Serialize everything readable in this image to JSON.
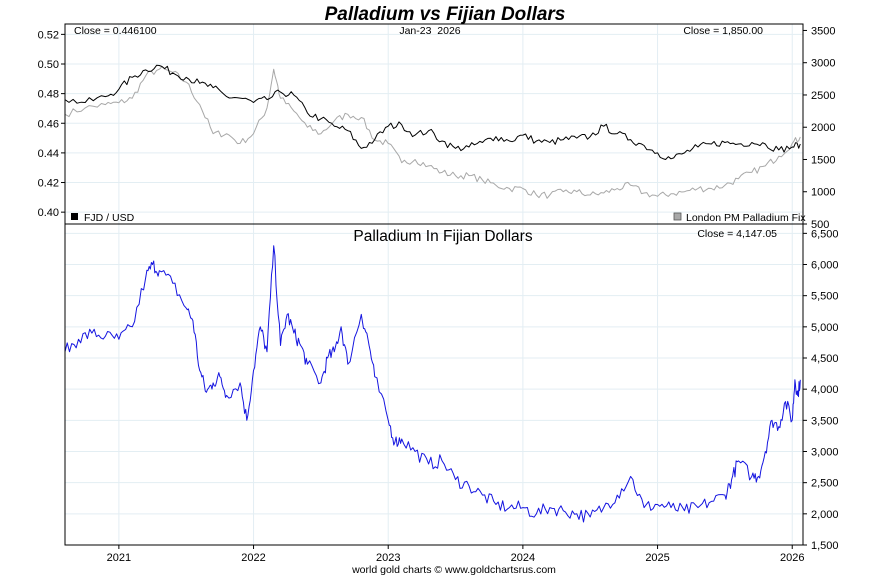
{
  "title": "Palladium vs Fijian Dollars",
  "footer": "world gold charts © www.goldchartsrus.com",
  "colors": {
    "title": "#1a1adc",
    "fjd": "#000000",
    "palladium_fix": "#a8a8a8",
    "palladium_fjd": "#1515e0",
    "grid": "#e3eef3"
  },
  "chart_data": [
    {
      "type": "line",
      "panel": "top",
      "date_label": "Jan-23  2026",
      "close_left": "Close = 0.446100",
      "close_right": "Close = 1,850.00",
      "legend_left": "FJD / USD",
      "legend_right": "London PM Palladium Fix",
      "y_left_ticks": [
        "0.40",
        "0.42",
        "0.44",
        "0.46",
        "0.48",
        "0.50",
        "0.52"
      ],
      "y_right_ticks": [
        "500",
        "1000",
        "1500",
        "2000",
        "2500",
        "3000",
        "3500"
      ],
      "ylim_left": [
        0.392,
        0.527
      ],
      "ylim_right": [
        500,
        3600
      ],
      "x_range": [
        2020.6,
        2026.08
      ],
      "series": [
        {
          "name": "FJD / USD",
          "axis": "left",
          "x": [
            2020.6,
            2020.75,
            2020.9,
            2021.0,
            2021.1,
            2021.2,
            2021.3,
            2021.4,
            2021.5,
            2021.6,
            2021.7,
            2021.8,
            2021.9,
            2022.0,
            2022.1,
            2022.2,
            2022.3,
            2022.4,
            2022.5,
            2022.6,
            2022.7,
            2022.8,
            2022.9,
            2023.0,
            2023.1,
            2023.2,
            2023.3,
            2023.4,
            2023.5,
            2023.6,
            2023.7,
            2023.8,
            2023.9,
            2024.0,
            2024.1,
            2024.2,
            2024.3,
            2024.4,
            2024.5,
            2024.6,
            2024.7,
            2024.8,
            2024.9,
            2025.0,
            2025.1,
            2025.2,
            2025.3,
            2025.4,
            2025.5,
            2025.6,
            2025.7,
            2025.8,
            2025.9,
            2026.0,
            2026.06
          ],
          "values": [
            0.476,
            0.474,
            0.478,
            0.483,
            0.491,
            0.496,
            0.499,
            0.494,
            0.491,
            0.487,
            0.484,
            0.478,
            0.477,
            0.474,
            0.476,
            0.481,
            0.479,
            0.467,
            0.463,
            0.458,
            0.455,
            0.443,
            0.449,
            0.458,
            0.459,
            0.452,
            0.455,
            0.448,
            0.443,
            0.444,
            0.447,
            0.451,
            0.448,
            0.452,
            0.448,
            0.447,
            0.449,
            0.45,
            0.451,
            0.458,
            0.453,
            0.449,
            0.445,
            0.44,
            0.436,
            0.44,
            0.444,
            0.446,
            0.447,
            0.446,
            0.447,
            0.446,
            0.442,
            0.444,
            0.446
          ]
        },
        {
          "name": "London PM Palladium Fix",
          "axis": "right",
          "x": [
            2020.6,
            2020.75,
            2020.9,
            2021.0,
            2021.1,
            2021.2,
            2021.3,
            2021.4,
            2021.5,
            2021.6,
            2021.7,
            2021.8,
            2021.9,
            2022.0,
            2022.1,
            2022.15,
            2022.2,
            2022.3,
            2022.4,
            2022.5,
            2022.6,
            2022.7,
            2022.8,
            2022.9,
            2023.0,
            2023.1,
            2023.2,
            2023.3,
            2023.4,
            2023.5,
            2023.6,
            2023.7,
            2023.8,
            2023.9,
            2024.0,
            2024.1,
            2024.2,
            2024.3,
            2024.4,
            2024.5,
            2024.6,
            2024.7,
            2024.8,
            2024.9,
            2025.0,
            2025.1,
            2025.2,
            2025.3,
            2025.4,
            2025.5,
            2025.6,
            2025.7,
            2025.8,
            2025.9,
            2026.0,
            2026.06
          ],
          "values": [
            2200,
            2300,
            2350,
            2380,
            2450,
            2800,
            2900,
            2850,
            2700,
            2350,
            1900,
            1900,
            1750,
            1900,
            2300,
            2900,
            2450,
            2250,
            2000,
            1900,
            2100,
            2200,
            2150,
            1800,
            1750,
            1450,
            1500,
            1400,
            1300,
            1250,
            1250,
            1180,
            1100,
            1050,
            1050,
            950,
            950,
            1000,
            1000,
            950,
            980,
            1050,
            1100,
            980,
            930,
            970,
            1000,
            1050,
            1050,
            1100,
            1200,
            1300,
            1400,
            1550,
            1750,
            1850
          ]
        }
      ]
    },
    {
      "type": "line",
      "panel": "bottom",
      "title": "Palladium In Fijian Dollars",
      "close": "Close = 4,147.05",
      "y_ticks": [
        "1,500",
        "2,000",
        "2,500",
        "3,000",
        "3,500",
        "4,000",
        "4,500",
        "5,000",
        "5,500",
        "6,000",
        "6,500"
      ],
      "ylim": [
        1500,
        6650
      ],
      "x_ticks": [
        "2021",
        "2022",
        "2023",
        "2024",
        "2025",
        "2026"
      ],
      "x_range": [
        2020.6,
        2026.08
      ],
      "series": [
        {
          "name": "Palladium In Fijian Dollars",
          "x": [
            2020.6,
            2020.7,
            2020.8,
            2020.9,
            2021.0,
            2021.1,
            2021.2,
            2021.25,
            2021.3,
            2021.4,
            2021.5,
            2021.55,
            2021.6,
            2021.65,
            2021.7,
            2021.75,
            2021.8,
            2021.9,
            2021.95,
            2022.0,
            2022.05,
            2022.1,
            2022.15,
            2022.2,
            2022.25,
            2022.3,
            2022.35,
            2022.4,
            2022.5,
            2022.55,
            2022.6,
            2022.65,
            2022.7,
            2022.8,
            2022.85,
            2022.9,
            2023.0,
            2023.05,
            2023.1,
            2023.2,
            2023.3,
            2023.4,
            2023.5,
            2023.6,
            2023.7,
            2023.8,
            2023.9,
            2024.0,
            2024.1,
            2024.2,
            2024.3,
            2024.4,
            2024.5,
            2024.6,
            2024.7,
            2024.8,
            2024.9,
            2025.0,
            2025.1,
            2025.2,
            2025.3,
            2025.4,
            2025.5,
            2025.55,
            2025.6,
            2025.7,
            2025.75,
            2025.8,
            2025.85,
            2025.9,
            2025.95,
            2026.0,
            2026.02,
            2026.04,
            2026.06
          ],
          "values": [
            4600,
            4800,
            4900,
            4850,
            4800,
            5000,
            5800,
            6000,
            5900,
            5700,
            5300,
            5100,
            4300,
            3950,
            4100,
            4200,
            3900,
            4100,
            3500,
            4300,
            5000,
            4600,
            6300,
            4700,
            5200,
            4900,
            4700,
            4400,
            4100,
            4500,
            4600,
            5000,
            4400,
            5200,
            4800,
            4200,
            3500,
            3150,
            3200,
            3000,
            2800,
            2850,
            2550,
            2450,
            2300,
            2150,
            2100,
            2100,
            2000,
            2100,
            2050,
            2000,
            1950,
            2100,
            2300,
            2600,
            2100,
            2150,
            2100,
            2050,
            2100,
            2200,
            2300,
            2550,
            2850,
            2600,
            2600,
            3000,
            3500,
            3400,
            3800,
            3500,
            4150,
            3900,
            4150
          ]
        }
      ]
    }
  ]
}
